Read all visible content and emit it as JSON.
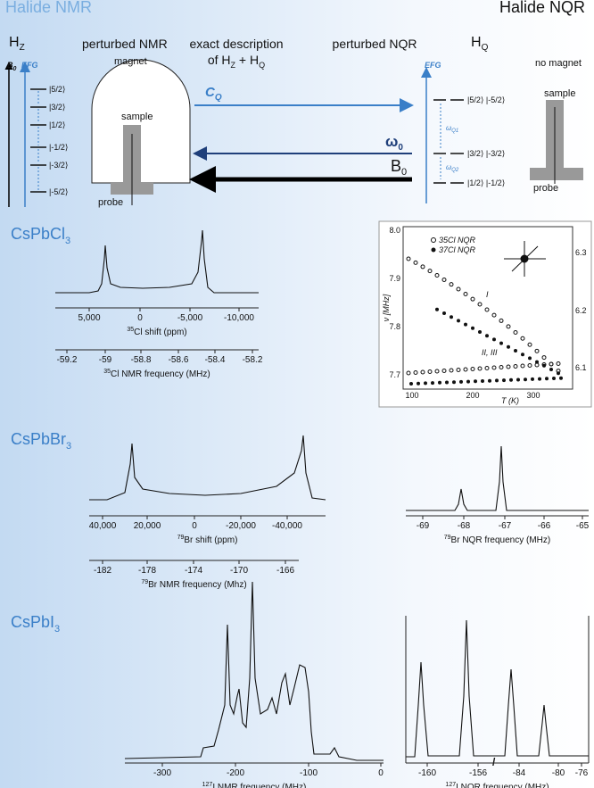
{
  "header": {
    "left": "Halide NMR",
    "right": "Halide NQR"
  },
  "diagram": {
    "hz": {
      "main": "H",
      "sub": "Z"
    },
    "hq": {
      "main": "H",
      "sub": "Q"
    },
    "perturbed_nmr": "perturbed NMR",
    "exact_1": "exact description",
    "exact_2": {
      "a": "of H",
      "a_sub": "Z",
      "b": " + H",
      "b_sub": "Q"
    },
    "perturbed_nqr": "perturbed NQR",
    "magnet": "magnet",
    "sample_left": "sample",
    "probe_left": "probe",
    "no_magnet": "no magnet",
    "sample_right": "sample",
    "probe_right": "probe",
    "b0_left": {
      "main": "B",
      "sub": "0"
    },
    "efg_left": "EFG",
    "efg_right": "EFG",
    "cq": {
      "main": "C",
      "sub": "Q"
    },
    "w0": {
      "main": "ω",
      "sub": "0"
    },
    "b0": {
      "main": "B",
      "sub": "0"
    },
    "levels_left": [
      "|5/2⟩",
      "|3/2⟩",
      "|1/2⟩",
      "|-1/2⟩",
      "|-3/2⟩",
      "|-5/2⟩"
    ],
    "levels_right": [
      "|5/2⟩ |-5/2⟩",
      "|3/2⟩ |-3/2⟩",
      "|1/2⟩ |-1/2⟩"
    ],
    "wq1": {
      "main": "ω",
      "sub": "Q1"
    },
    "wq2": {
      "main": "ω",
      "sub": "Q2"
    }
  },
  "rows": [
    {
      "compound": {
        "main": "CsPbCl",
        "sub": "3"
      },
      "nmr_shift": {
        "ticks": [
          "5,000",
          "0",
          "-5,000",
          "-10,000"
        ],
        "label": {
          "sup": "35",
          "main": "Cl shift (ppm)"
        }
      },
      "nmr_freq": {
        "ticks": [
          "-59.2",
          "-59",
          "-58.8",
          "-58.6",
          "-58.4",
          "-58.2"
        ],
        "label": {
          "sup": "35",
          "main": "Cl NMR frequency (MHz)"
        }
      },
      "nqr_inset": {
        "y_label": "ν [MHz]",
        "y_ticks": [
          "8.0",
          "7.9",
          "7.8",
          "7.7"
        ],
        "y2_ticks": [
          "6.3",
          "6.2",
          "6.1"
        ],
        "x_ticks": [
          "100",
          "200",
          "300"
        ],
        "x_label": "T (K)",
        "legend": [
          "35Cl NQR",
          "37Cl NQR"
        ],
        "branch_1": "I",
        "branch_2": "II, III"
      }
    },
    {
      "compound": {
        "main": "CsPbBr",
        "sub": "3"
      },
      "nmr_shift": {
        "ticks": [
          "40,000",
          "20,000",
          "0",
          "-20,000",
          "-40,000"
        ],
        "label": {
          "sup": "79",
          "main": "Br shift (ppm)"
        }
      },
      "nmr_freq": {
        "ticks": [
          "-182",
          "-178",
          "-174",
          "-170",
          "-166"
        ],
        "label": {
          "sup": "79",
          "main": "Br NMR frequency (Mhz)"
        }
      },
      "nqr": {
        "ticks": [
          "-69",
          "-68",
          "-67",
          "-66",
          "-65"
        ],
        "label": {
          "sup": "79",
          "main": "Br NQR frequency (MHz)"
        }
      }
    },
    {
      "compound": {
        "main": "CsPbI",
        "sub": "3"
      },
      "nmr_freq": {
        "ticks": [
          "-300",
          "-200",
          "-100",
          "0"
        ],
        "label": {
          "sup": "127",
          "main": "I NMR frequency (MHz)"
        }
      },
      "nqr": {
        "ticks": [
          "-160",
          "-156",
          "-84",
          "-80",
          "-76"
        ],
        "label": {
          "sup": "127",
          "main": "I NQR frequency (MHz)"
        }
      }
    }
  ]
}
